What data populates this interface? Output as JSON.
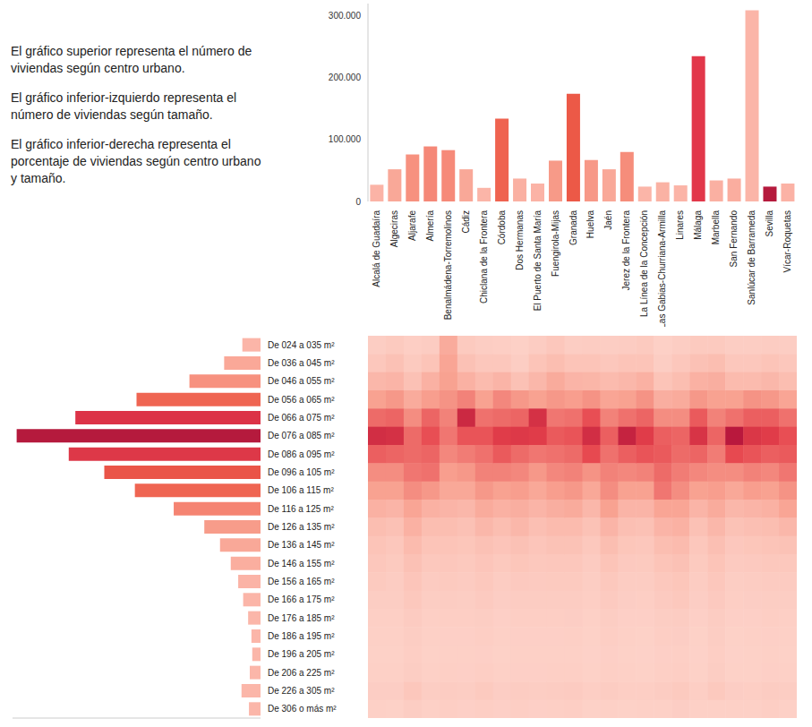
{
  "text": [
    "El gráfico superior representa el número de viviendas según centro urbano.",
    "El gráfico inferior-izquierdo representa el número de viviendas según tamaño.",
    "El gráfico inferior-derecha representa el porcentaje de viviendas según centro urbano y tamaño."
  ],
  "chart_data": [
    {
      "type": "bar",
      "categories": [
        "Alcalá de Guadaíra",
        "Algeciras",
        "Aljarafe",
        "Almería",
        "Benalmádena-Torremolinos",
        "Cádiz",
        "Chiclana de la Frontera",
        "Córdoba",
        "Dos Hermanas",
        "El Puerto de Santa María",
        "Fuengirola-Mijas",
        "Granada",
        "Huelva",
        "Jaén",
        "Jerez de la Frontera",
        "La Línea de la Concepción",
        "Las Gabias-Churriana-Armilla",
        "Linares",
        "Málaga",
        "Marbella",
        "San Fernando",
        "Sanlúcar de Barrameda",
        "Sevilla",
        "Vícar-Roquetas"
      ],
      "values": [
        27000,
        52000,
        76000,
        89000,
        83000,
        52000,
        22000,
        134000,
        37000,
        29000,
        66000,
        174000,
        67000,
        52000,
        80000,
        24000,
        31000,
        26000,
        235000,
        34000,
        37000,
        309000,
        24000,
        29000
      ],
      "colors": [
        "#fbb3a6",
        "#f9a898",
        "#f7917f",
        "#f58878",
        "#f68a79",
        "#f9a898",
        "#fbb5a8",
        "#ef6350",
        "#fab0a2",
        "#fbb3a6",
        "#f79a88",
        "#ec5947",
        "#f79887",
        "#f9a898",
        "#f68d7b",
        "#fbb5a8",
        "#fab2a4",
        "#fbb4a7",
        "#e2374a",
        "#fab0a2",
        "#faad9f",
        "#fbb5a8",
        "#b51a3d",
        "#fbb2a5"
      ],
      "ylim": [
        0,
        320000
      ],
      "yticks": [
        0,
        {
          "value": 100000,
          "label": "100.000"
        },
        {
          "value": 200000,
          "label": "200.000"
        },
        {
          "value": 300000,
          "label": "300.000"
        }
      ],
      "grid": false
    },
    {
      "type": "bar",
      "orientation": "horizontal",
      "categories": [
        "De 024 a 035 m²",
        "De 036 a 045 m²",
        "De 046 a 055 m²",
        "De 056 a 065 m²",
        "De 066 a 075 m²",
        "De 076 a 085 m²",
        "De 086 a 095 m²",
        "De 096 a 105 m²",
        "De 106 a 115 m²",
        "De 116 a 125 m²",
        "De 126 a 135 m²",
        "De 136 a 145 m²",
        "De 146 a 155 m²",
        "De 156 a 165 m²",
        "De 166 a 175 m²",
        "De 176 a 185 m²",
        "De 186 a 195 m²",
        "De 196 a 205 m²",
        "De 206 a 225 m²",
        "De 226 a 305 m²",
        "De 306 o más m²"
      ],
      "values": [
        22000,
        44000,
        86000,
        150000,
        224000,
        295000,
        232000,
        189000,
        152000,
        105000,
        68000,
        49000,
        36000,
        27000,
        21000,
        15000,
        11000,
        10000,
        13000,
        23000,
        14000
      ],
      "colors": [
        "#fbb5a8",
        "#faa898",
        "#f7917f",
        "#ef6552",
        "#dc3347",
        "#b51a3d",
        "#dd3848",
        "#ea5448",
        "#ef6552",
        "#f58472",
        "#f79c8a",
        "#f9a898",
        "#faae9f",
        "#fbb3a6",
        "#fbb5a8",
        "#fbb6a9",
        "#fbb6a9",
        "#fbb6a9",
        "#fbb6a9",
        "#fbb6a9",
        "#fbb6a9"
      ],
      "xlim": [
        0,
        300000
      ],
      "tick_labels": "y"
    },
    {
      "type": "heatmap",
      "cells": [
        [
          1.0,
          2.0,
          4.5,
          8.0,
          13.0,
          20.0,
          14.0,
          10.0,
          8.0,
          5.5,
          3.5,
          2.5,
          2.0,
          1.5,
          1.0,
          0.7,
          0.5,
          0.4,
          0.5,
          0.9,
          0.5
        ],
        [
          1.5,
          3.0,
          5.0,
          9.0,
          13.5,
          19.5,
          13.5,
          10.0,
          8.0,
          5.0,
          3.0,
          2.0,
          1.5,
          1.2,
          1.0,
          0.7,
          0.5,
          0.4,
          0.5,
          0.9,
          0.4
        ],
        [
          0.8,
          1.5,
          3.0,
          6.5,
          10.0,
          13.0,
          13.0,
          12.0,
          10.0,
          7.5,
          5.5,
          4.0,
          3.0,
          2.3,
          1.8,
          1.3,
          1.0,
          0.8,
          1.0,
          2.0,
          1.0
        ],
        [
          1.2,
          2.5,
          5.5,
          8.5,
          13.5,
          15.5,
          13.5,
          12.5,
          9.0,
          5.5,
          3.5,
          2.5,
          1.8,
          1.3,
          1.0,
          0.7,
          0.5,
          0.4,
          0.5,
          1.0,
          0.5
        ],
        [
          6.5,
          7.5,
          8.0,
          9.5,
          11.0,
          12.0,
          10.5,
          8.5,
          7.0,
          5.0,
          3.5,
          2.5,
          2.0,
          1.5,
          1.2,
          0.8,
          0.6,
          0.5,
          0.7,
          1.2,
          0.8
        ],
        [
          1.5,
          3.0,
          5.5,
          11.0,
          21.0,
          15.0,
          11.5,
          9.0,
          7.0,
          4.5,
          3.0,
          2.2,
          1.7,
          1.3,
          1.0,
          0.8,
          0.6,
          0.5,
          0.6,
          1.0,
          0.6
        ],
        [
          1.0,
          2.0,
          4.0,
          8.0,
          12.5,
          15.0,
          12.5,
          11.0,
          9.0,
          6.5,
          4.5,
          3.0,
          2.3,
          1.8,
          1.4,
          1.0,
          0.8,
          0.6,
          0.8,
          1.5,
          0.8
        ],
        [
          0.8,
          2.0,
          5.0,
          10.5,
          13.0,
          17.5,
          14.5,
          11.0,
          8.0,
          5.5,
          3.5,
          2.4,
          1.7,
          1.2,
          0.9,
          0.6,
          0.5,
          0.4,
          0.5,
          0.9,
          0.6
        ],
        [
          0.5,
          1.0,
          3.0,
          9.0,
          13.5,
          18.0,
          13.0,
          10.5,
          8.5,
          6.0,
          4.5,
          3.0,
          2.2,
          1.6,
          1.2,
          0.8,
          0.6,
          0.5,
          0.6,
          1.2,
          0.8
        ],
        [
          1.2,
          2.5,
          4.5,
          8.0,
          19.5,
          17.5,
          12.0,
          9.0,
          7.0,
          5.0,
          3.2,
          2.3,
          1.8,
          1.4,
          1.1,
          0.8,
          0.6,
          0.5,
          0.6,
          1.0,
          0.6
        ],
        [
          2.0,
          3.5,
          6.5,
          9.0,
          12.0,
          14.5,
          12.5,
          10.5,
          8.5,
          6.0,
          4.0,
          2.8,
          2.0,
          1.5,
          1.2,
          0.8,
          0.6,
          0.5,
          0.7,
          1.2,
          0.7
        ],
        [
          1.0,
          2.5,
          5.0,
          8.5,
          12.5,
          15.0,
          13.0,
          11.0,
          9.0,
          6.5,
          4.0,
          2.8,
          2.0,
          1.5,
          1.2,
          0.9,
          0.7,
          0.5,
          0.7,
          1.3,
          0.8
        ],
        [
          1.2,
          2.5,
          4.8,
          9.5,
          15.5,
          20.0,
          16.0,
          9.5,
          7.0,
          4.5,
          2.8,
          1.8,
          1.3,
          1.0,
          0.8,
          0.5,
          0.4,
          0.3,
          0.4,
          0.8,
          0.4
        ],
        [
          1.0,
          2.0,
          4.0,
          7.5,
          11.0,
          14.0,
          12.5,
          11.0,
          10.0,
          8.0,
          5.0,
          3.5,
          2.5,
          1.8,
          1.4,
          1.0,
          0.8,
          0.6,
          0.7,
          1.2,
          0.5
        ],
        [
          1.2,
          2.5,
          4.5,
          8.0,
          12.5,
          22.0,
          14.0,
          10.5,
          8.0,
          5.0,
          3.2,
          2.2,
          1.6,
          1.2,
          0.9,
          0.6,
          0.5,
          0.4,
          0.5,
          0.8,
          0.4
        ],
        [
          1.5,
          2.5,
          5.5,
          9.5,
          13.5,
          17.5,
          15.0,
          11.0,
          8.0,
          5.0,
          3.0,
          2.0,
          1.5,
          1.1,
          0.8,
          0.6,
          0.4,
          0.3,
          0.4,
          0.8,
          0.5
        ],
        [
          0.5,
          1.0,
          2.5,
          6.0,
          10.0,
          14.0,
          14.5,
          13.0,
          12.0,
          7.5,
          5.0,
          3.5,
          2.5,
          1.8,
          1.4,
          1.0,
          0.8,
          0.6,
          0.7,
          1.2,
          0.5
        ],
        [
          1.0,
          2.0,
          3.5,
          6.5,
          10.0,
          13.5,
          13.0,
          11.5,
          10.0,
          7.5,
          5.5,
          4.0,
          3.0,
          2.2,
          1.8,
          1.2,
          0.9,
          0.7,
          0.8,
          1.5,
          0.9
        ],
        [
          1.5,
          3.0,
          5.5,
          9.0,
          14.5,
          19.0,
          13.5,
          10.5,
          8.0,
          5.0,
          3.0,
          2.0,
          1.5,
          1.1,
          0.9,
          0.6,
          0.4,
          0.3,
          0.4,
          0.8,
          0.5
        ],
        [
          1.5,
          3.5,
          6.0,
          8.0,
          11.0,
          13.5,
          11.5,
          10.0,
          8.5,
          6.5,
          4.5,
          3.2,
          2.5,
          2.0,
          1.6,
          1.2,
          1.0,
          0.8,
          1.0,
          1.7,
          0.5
        ],
        [
          1.0,
          2.0,
          4.0,
          8.0,
          12.5,
          24.0,
          16.0,
          10.0,
          7.0,
          4.5,
          2.8,
          1.9,
          1.4,
          1.0,
          0.8,
          0.6,
          0.4,
          0.3,
          0.4,
          0.9,
          0.5
        ],
        [
          1.0,
          2.0,
          4.0,
          9.5,
          14.0,
          18.5,
          15.0,
          11.0,
          8.5,
          5.0,
          3.2,
          2.2,
          1.6,
          1.2,
          0.9,
          0.6,
          0.5,
          0.4,
          0.4,
          0.8,
          0.5
        ],
        [
          1.2,
          2.5,
          4.5,
          9.0,
          14.0,
          17.5,
          14.0,
          10.5,
          8.0,
          5.5,
          3.5,
          2.5,
          1.8,
          1.3,
          1.0,
          0.8,
          0.6,
          0.5,
          0.6,
          1.2,
          0.8
        ],
        [
          1.0,
          2.0,
          3.5,
          7.5,
          12.5,
          15.5,
          14.5,
          12.0,
          9.5,
          7.5,
          4.5,
          2.8,
          1.8,
          1.3,
          1.0,
          0.7,
          0.5,
          0.4,
          0.5,
          1.0,
          0.5
        ]
      ],
      "value_range": [
        0,
        25
      ],
      "tick_labels": false
    }
  ]
}
